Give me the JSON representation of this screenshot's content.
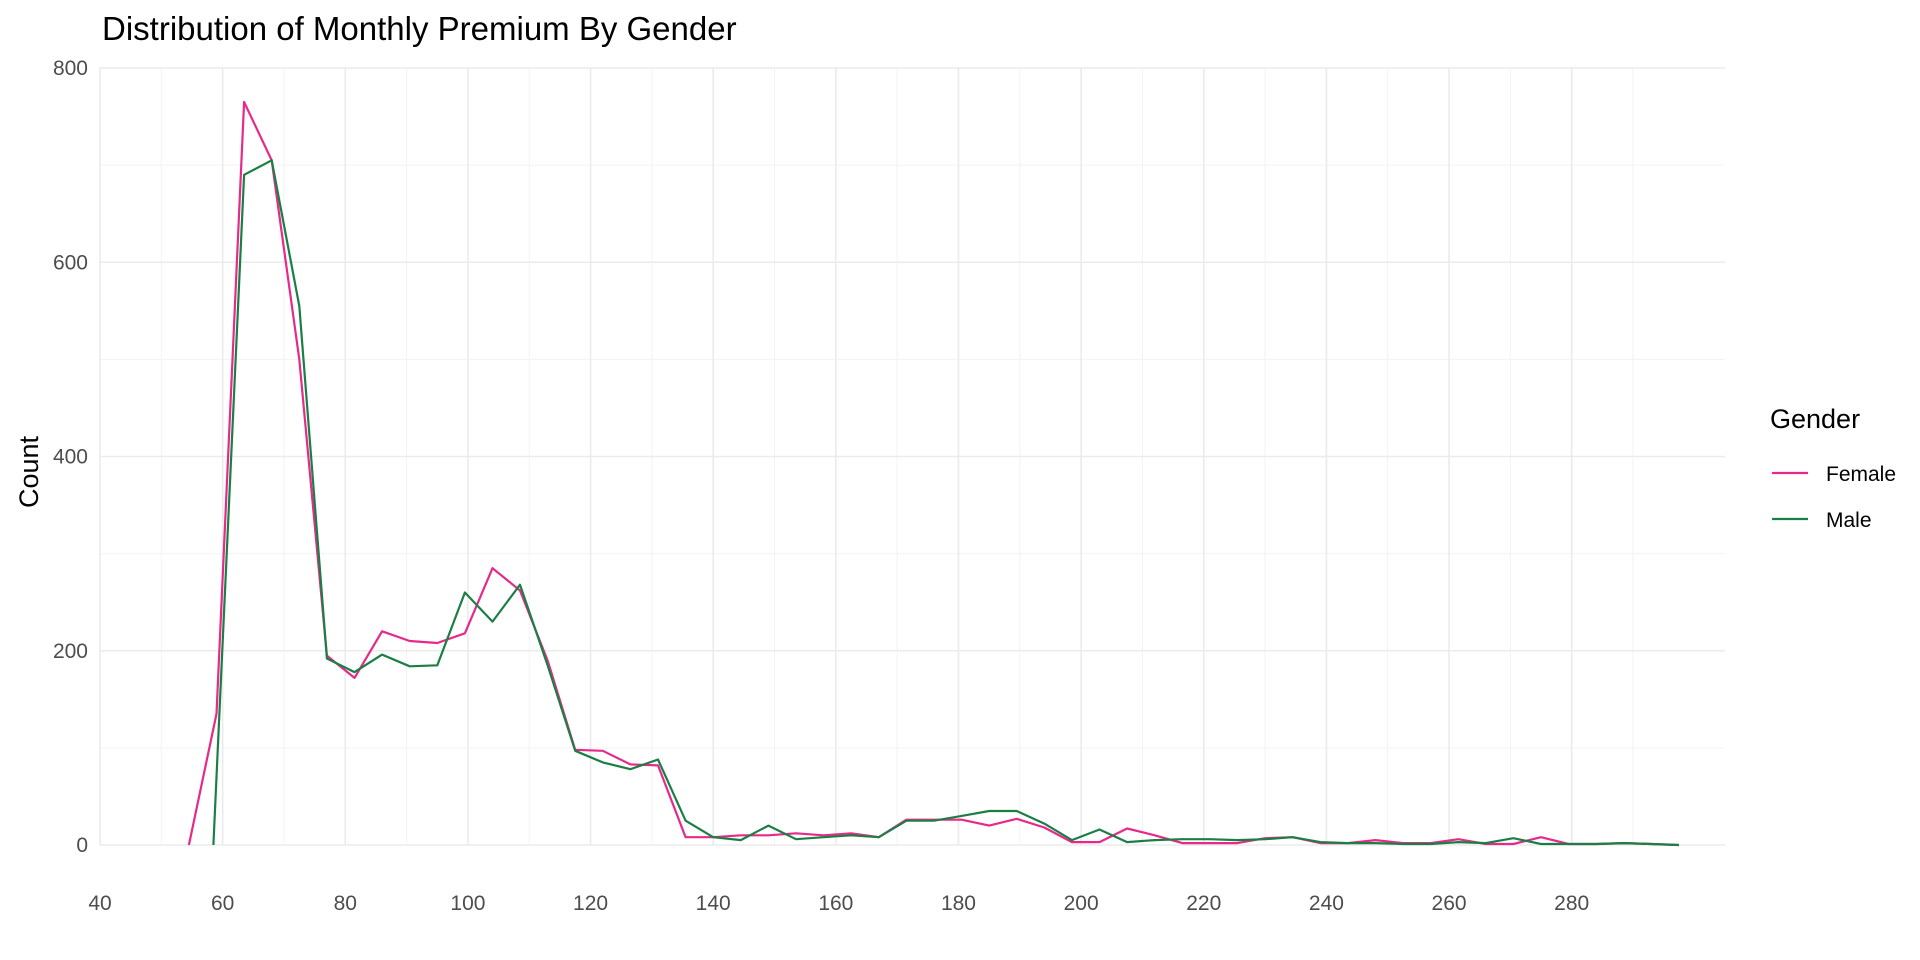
{
  "chart_data": {
    "type": "line",
    "title": "Distribution of Monthly Premium By Gender",
    "xlabel": "",
    "ylabel": "Count",
    "xlim": [
      40,
      305
    ],
    "ylim": [
      0,
      800
    ],
    "x_ticks": [
      40,
      60,
      80,
      100,
      120,
      140,
      160,
      180,
      200,
      220,
      240,
      260,
      280
    ],
    "y_ticks": [
      0,
      200,
      400,
      600,
      800
    ],
    "grid": true,
    "legend": {
      "title": "Gender",
      "position": "right"
    },
    "series": [
      {
        "name": "Female",
        "color": "#e7298a",
        "points": [
          [
            54.5,
            0
          ],
          [
            59,
            135
          ],
          [
            63.5,
            765
          ],
          [
            68,
            705
          ],
          [
            72.5,
            500
          ],
          [
            77,
            195
          ],
          [
            81.5,
            172
          ],
          [
            86,
            220
          ],
          [
            90.5,
            210
          ],
          [
            95,
            208
          ],
          [
            99.5,
            218
          ],
          [
            104,
            285
          ],
          [
            108.5,
            262
          ],
          [
            113,
            190
          ],
          [
            117.5,
            98
          ],
          [
            122,
            97
          ],
          [
            126.5,
            83
          ],
          [
            131,
            82
          ],
          [
            135.5,
            8
          ],
          [
            140,
            8
          ],
          [
            144.5,
            10
          ],
          [
            149,
            10
          ],
          [
            153.5,
            12
          ],
          [
            158,
            10
          ],
          [
            162.5,
            12
          ],
          [
            167,
            8
          ],
          [
            171.5,
            26
          ],
          [
            176,
            26
          ],
          [
            180.5,
            26
          ],
          [
            185,
            20
          ],
          [
            189.5,
            27
          ],
          [
            194,
            18
          ],
          [
            198.5,
            3
          ],
          [
            203,
            3
          ],
          [
            207.5,
            17
          ],
          [
            212,
            10
          ],
          [
            216.5,
            2
          ],
          [
            221,
            2
          ],
          [
            225.5,
            2
          ],
          [
            230,
            7
          ],
          [
            234.5,
            8
          ],
          [
            239,
            2
          ],
          [
            243.5,
            2
          ],
          [
            248,
            5
          ],
          [
            252.5,
            2
          ],
          [
            257,
            2
          ],
          [
            261.5,
            6
          ],
          [
            266,
            1
          ],
          [
            270.5,
            1
          ],
          [
            275,
            8
          ],
          [
            279.5,
            1
          ],
          [
            284,
            1
          ],
          [
            288.5,
            2
          ],
          [
            293,
            1
          ],
          [
            297.5,
            0
          ]
        ]
      },
      {
        "name": "Male",
        "color": "#1b7f45",
        "points": [
          [
            58.5,
            0
          ],
          [
            59.5,
            140
          ],
          [
            63.5,
            690
          ],
          [
            68,
            705
          ],
          [
            72.5,
            555
          ],
          [
            77,
            192
          ],
          [
            81.5,
            178
          ],
          [
            86,
            196
          ],
          [
            90.5,
            184
          ],
          [
            95,
            185
          ],
          [
            99.5,
            260
          ],
          [
            104,
            230
          ],
          [
            108.5,
            268
          ],
          [
            113,
            185
          ],
          [
            117.5,
            97
          ],
          [
            122,
            85
          ],
          [
            126.5,
            78
          ],
          [
            131,
            88
          ],
          [
            135.5,
            25
          ],
          [
            140,
            8
          ],
          [
            144.5,
            5
          ],
          [
            149,
            20
          ],
          [
            153.5,
            6
          ],
          [
            158,
            8
          ],
          [
            162.5,
            10
          ],
          [
            167,
            8
          ],
          [
            171.5,
            25
          ],
          [
            176,
            25
          ],
          [
            180.5,
            30
          ],
          [
            185,
            35
          ],
          [
            189.5,
            35
          ],
          [
            194,
            22
          ],
          [
            198.5,
            5
          ],
          [
            203,
            16
          ],
          [
            207.5,
            3
          ],
          [
            212,
            5
          ],
          [
            216.5,
            6
          ],
          [
            221,
            6
          ],
          [
            225.5,
            5
          ],
          [
            230,
            6
          ],
          [
            234.5,
            8
          ],
          [
            239,
            3
          ],
          [
            243.5,
            2
          ],
          [
            248,
            2
          ],
          [
            252.5,
            1
          ],
          [
            257,
            1
          ],
          [
            261.5,
            3
          ],
          [
            266,
            2
          ],
          [
            270.5,
            7
          ],
          [
            275,
            1
          ],
          [
            279.5,
            1
          ],
          [
            284,
            1
          ],
          [
            288.5,
            2
          ],
          [
            293,
            1
          ],
          [
            297.5,
            0
          ]
        ]
      }
    ]
  }
}
